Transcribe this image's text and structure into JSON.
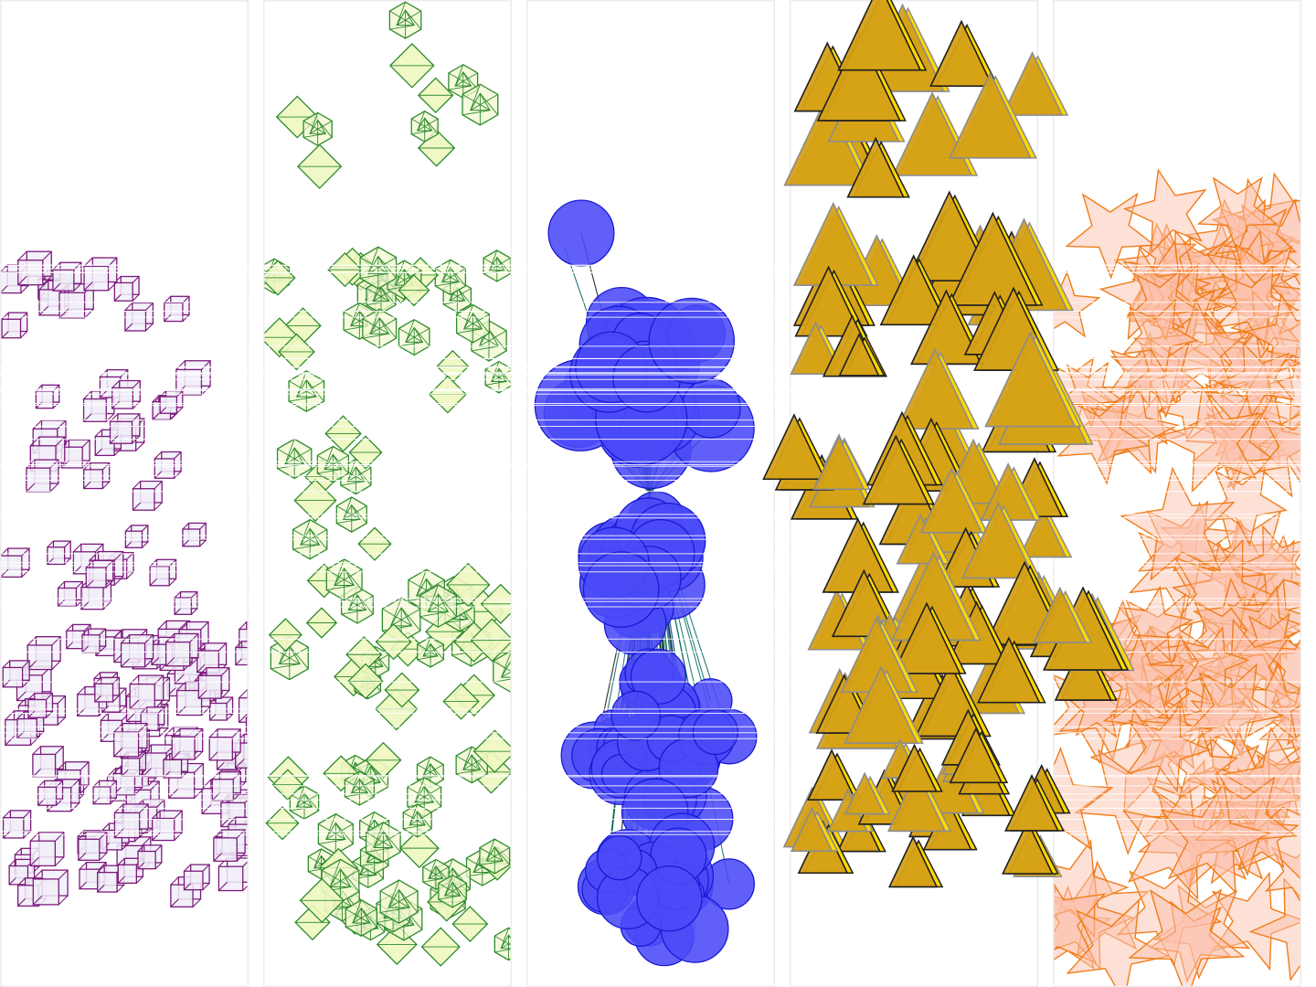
{
  "panels": [
    {
      "id": "cubes",
      "icon": "cube-icon",
      "shape": "cube",
      "stroke": "#7b1a7b",
      "fill": "#f1eef8"
    },
    {
      "id": "polyhedra",
      "icon": "icosahedron-icon",
      "shape": "icosahedron",
      "stroke": "#2e8b2e",
      "fill": "#f3f8d0",
      "alt_fill": "#eef7c0"
    },
    {
      "id": "spheres",
      "icon": "circle-icon",
      "shape": "circle",
      "stroke": "#1a1ad6",
      "fill": "#4a4af7",
      "line_colors": [
        "#1a1a1a",
        "#0d6e6e",
        "#127a5a",
        "#2a5fb0"
      ]
    },
    {
      "id": "pyramids",
      "icon": "triangle-icon",
      "shape": "triangle",
      "stroke": "#1f1f1f",
      "alt_stroke": "#8c8c8c",
      "fill": "#d4a017",
      "highlight": "#ffd700"
    },
    {
      "id": "stars",
      "icon": "star-icon",
      "shape": "star",
      "stroke": "#f07d1a",
      "fill": "#fcc2ae"
    }
  ]
}
